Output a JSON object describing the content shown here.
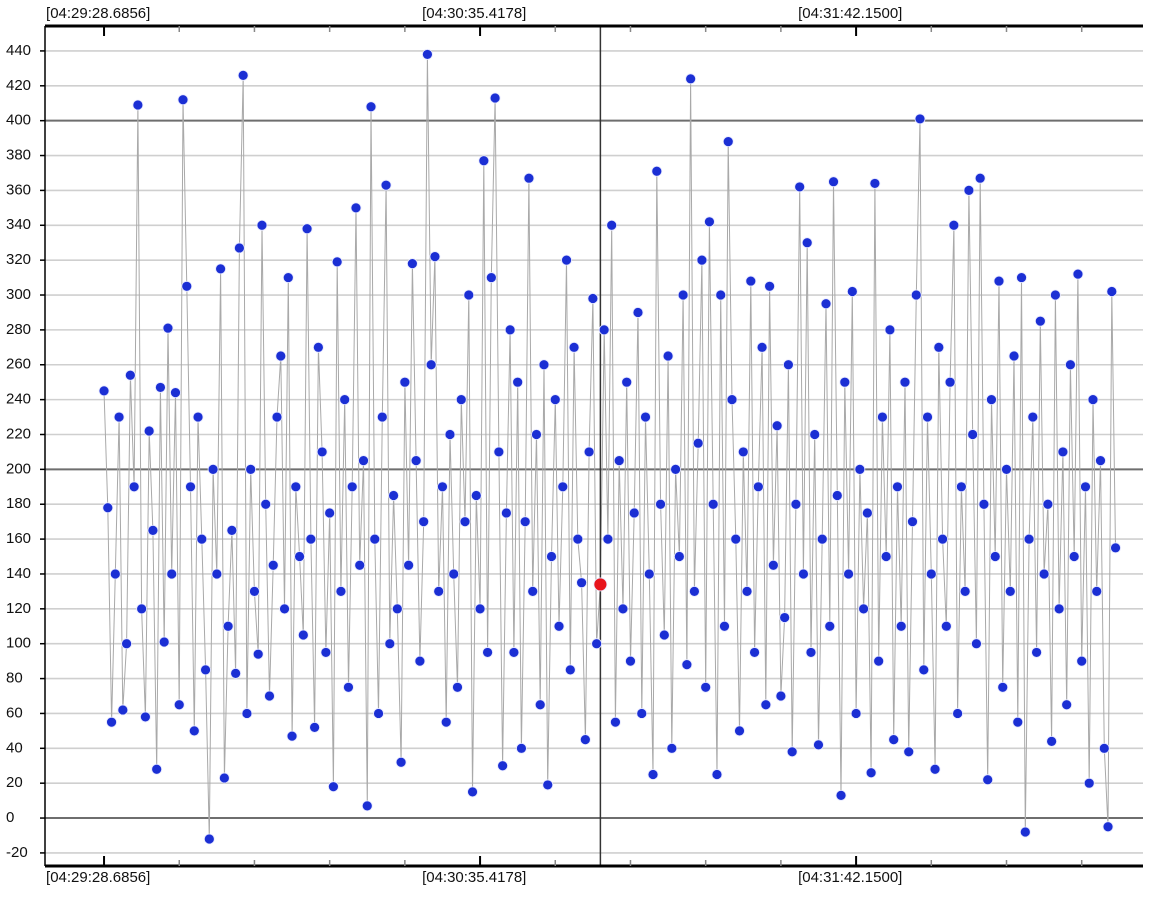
{
  "chart_data": {
    "type": "line",
    "color": "#1b2fd4",
    "line_color": "#a9a9a9",
    "highlight_index": 132,
    "highlight_color": "#e8141c",
    "cursor_color": "#333333",
    "grid": true,
    "major_yticks": [
      0,
      200,
      400
    ],
    "xlim": [
      -15.7,
      276.3
    ],
    "xticks": [
      {
        "value": 0,
        "label": "[04:29:28.6856]"
      },
      {
        "value": 100,
        "label": "[04:30:35.4178]"
      },
      {
        "value": 200,
        "label": "[04:31:42.1500]"
      }
    ],
    "xminor_step": 20,
    "ylim": [
      -27.5,
      454.3
    ],
    "yticks": [
      -20,
      0,
      20,
      40,
      60,
      80,
      100,
      120,
      140,
      160,
      180,
      200,
      220,
      240,
      260,
      280,
      300,
      320,
      340,
      360,
      380,
      400,
      420,
      440
    ],
    "values": [
      245,
      178,
      55,
      140,
      230,
      62,
      100,
      254,
      190,
      409,
      120,
      58,
      222,
      165,
      28,
      247,
      101,
      281,
      140,
      244,
      65,
      412,
      305,
      190,
      50,
      230,
      160,
      85,
      -12,
      200,
      140,
      315,
      23,
      110,
      165,
      83,
      327,
      426,
      60,
      200,
      130,
      94,
      340,
      180,
      70,
      145,
      230,
      265,
      120,
      310,
      47,
      190,
      150,
      105,
      338,
      160,
      52,
      270,
      210,
      95,
      175,
      18,
      319,
      130,
      240,
      75,
      190,
      350,
      145,
      205,
      7,
      408,
      160,
      60,
      230,
      363,
      100,
      185,
      120,
      32,
      250,
      145,
      318,
      205,
      90,
      170,
      438,
      260,
      322,
      130,
      190,
      55,
      220,
      140,
      75,
      240,
      170,
      300,
      15,
      185,
      120,
      377,
      95,
      310,
      413,
      210,
      30,
      175,
      280,
      95,
      250,
      40,
      170,
      367,
      130,
      220,
      65,
      260,
      19,
      150,
      240,
      110,
      190,
      320,
      85,
      270,
      160,
      135,
      45,
      210,
      298,
      100,
      134,
      280,
      160,
      340,
      55,
      205,
      120,
      250,
      90,
      175,
      290,
      60,
      230,
      140,
      25,
      371,
      180,
      105,
      265,
      40,
      200,
      150,
      300,
      88,
      424,
      130,
      215,
      320,
      75,
      342,
      180,
      25,
      300,
      110,
      388,
      240,
      160,
      50,
      210,
      130,
      308,
      95,
      190,
      270,
      65,
      305,
      145,
      225,
      70,
      115,
      260,
      38,
      180,
      362,
      140,
      330,
      95,
      220,
      42,
      160,
      295,
      110,
      365,
      185,
      13,
      250,
      140,
      302,
      60,
      200,
      120,
      175,
      26,
      364,
      90,
      230,
      150,
      280,
      45,
      190,
      110,
      250,
      38,
      170,
      300,
      401,
      85,
      230,
      140,
      28,
      270,
      160,
      110,
      250,
      340,
      60,
      190,
      130,
      360,
      220,
      100,
      367,
      180,
      22,
      240,
      150,
      308,
      75,
      200,
      130,
      265,
      55,
      310,
      -8,
      160,
      230,
      95,
      285,
      140,
      180,
      44,
      300,
      120,
      210,
      65,
      260,
      150,
      312,
      90,
      190,
      20,
      240,
      130,
      205,
      40,
      -5,
      302,
      155
    ]
  }
}
